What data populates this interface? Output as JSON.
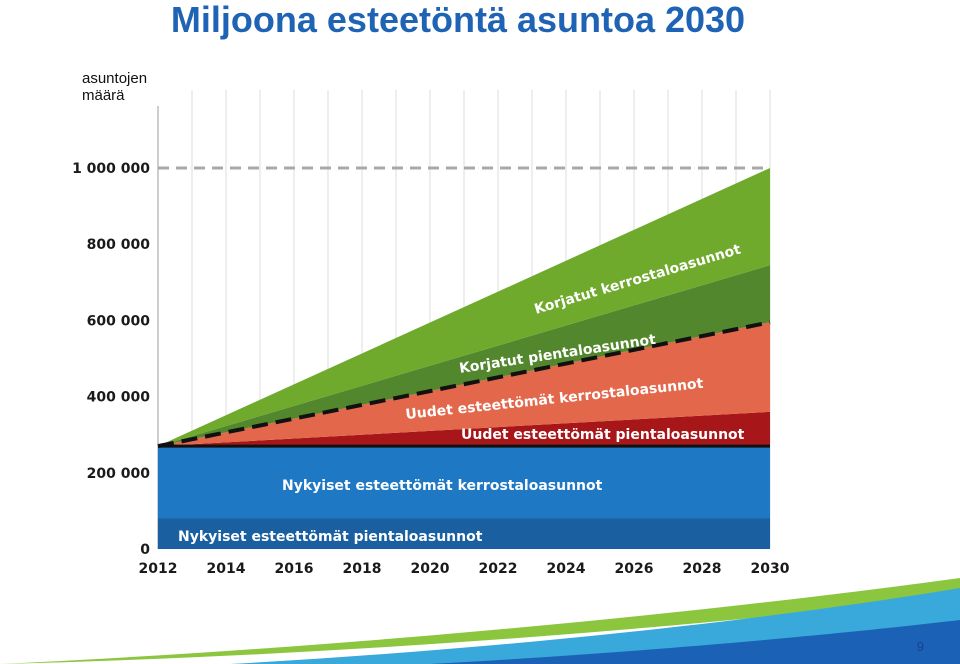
{
  "title": "Miljoona esteetöntä asuntoa 2030",
  "page_number": "9",
  "chart_data": {
    "type": "area",
    "title": "Miljoona esteetöntä asuntoa 2030",
    "ylabel": "asuntojen määrä",
    "xlim": [
      2012,
      2030
    ],
    "ylim": [
      0,
      1000000
    ],
    "x_ticks": [
      2012,
      2014,
      2016,
      2018,
      2020,
      2022,
      2024,
      2026,
      2028,
      2030
    ],
    "y_ticks": [
      {
        "value": 0,
        "label": "0"
      },
      {
        "value": 200000,
        "label": "200 000"
      },
      {
        "value": 400000,
        "label": "400 000"
      },
      {
        "value": 600000,
        "label": "600 000"
      },
      {
        "value": 800000,
        "label": "800 000"
      },
      {
        "value": 1000000,
        "label": "1 000 000"
      }
    ],
    "x": [
      2012,
      2030
    ],
    "series": [
      {
        "name": "Nykyiset esteettömät pientaloasunnot",
        "color": "#1a5fa0",
        "values": [
          80000,
          80000
        ]
      },
      {
        "name": "Nykyiset esteettömät kerrostaloasunnot",
        "color": "#1f78c4",
        "values": [
          190000,
          190000
        ]
      },
      {
        "name": "Uudet esteettömät pientaloasunnot",
        "color": "#a7171a",
        "values": [
          0,
          90000
        ]
      },
      {
        "name": "Uudet esteettömät kerrostaloasunnot",
        "color": "#e3674a",
        "values": [
          0,
          235000
        ]
      },
      {
        "name": "Korjatut pientaloasunnot",
        "color": "#53872d",
        "values": [
          0,
          150000
        ]
      },
      {
        "name": "Korjatut kerrostaloasunnot",
        "color": "#6faa2d",
        "values": [
          0,
          255000
        ]
      }
    ],
    "target_line": {
      "value": 1000000,
      "style": "dashed",
      "color": "#a8a8a8"
    },
    "black_dashed_line": {
      "x": [
        2012,
        2030
      ],
      "y": [
        270000,
        595000
      ]
    },
    "grid": true,
    "legend": "none"
  }
}
